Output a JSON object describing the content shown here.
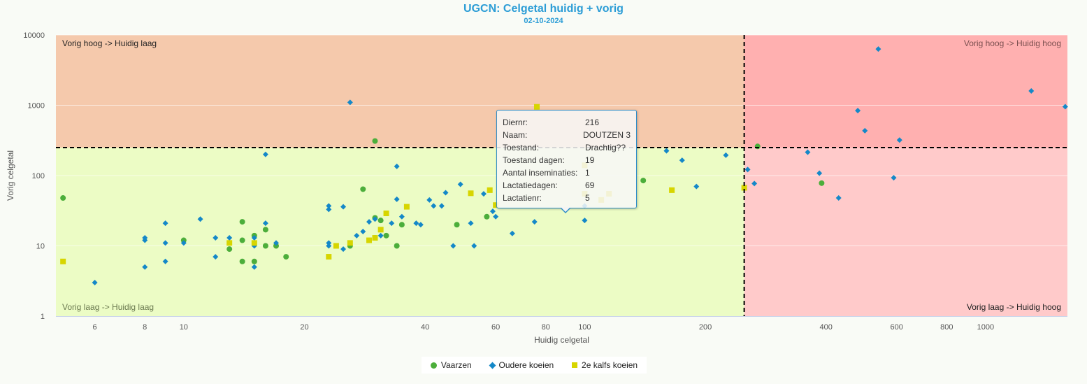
{
  "title": "UGCN: Celgetal huidig + vorig",
  "subtitle": "02-10-2024",
  "chart_data": {
    "type": "scatter",
    "xlabel": "Huidig celgetal",
    "ylabel": "Vorig celgetal",
    "x_scale": "log",
    "y_scale": "log",
    "xlim": [
      4.8,
      1600
    ],
    "ylim": [
      1,
      10000
    ],
    "x_ticks": [
      6,
      8,
      10,
      20,
      40,
      60,
      80,
      100,
      200,
      400,
      600,
      800,
      1000
    ],
    "y_ticks": [
      1,
      10,
      100,
      1000,
      10000
    ],
    "threshold": 250,
    "quadrants": {
      "top_left": "Vorig hoog -> Huidig laag",
      "top_right": "Vorig hoog -> Huidig hoog",
      "bottom_left": "Vorig laag -> Huidig laag",
      "bottom_right": "Vorig laag -> Huidig hoog"
    },
    "colors": {
      "q_top_left": "#f5c9ac",
      "q_top_right": "#ffb0b0",
      "q_bottom_left": "#ecfcc5",
      "q_bottom_right": "#ffcaca"
    },
    "legend_position": "bottom-center",
    "series": [
      {
        "name": "Vaarzen",
        "marker": "circle",
        "color": "#4cae3b",
        "points": [
          [
            5,
            48
          ],
          [
            10,
            12
          ],
          [
            13,
            9
          ],
          [
            14,
            22
          ],
          [
            14,
            12
          ],
          [
            14,
            6
          ],
          [
            15,
            14
          ],
          [
            15,
            6
          ],
          [
            16,
            17
          ],
          [
            16,
            10
          ],
          [
            17,
            10
          ],
          [
            18,
            7
          ],
          [
            26,
            10
          ],
          [
            28,
            64
          ],
          [
            30,
            25
          ],
          [
            30,
            13
          ],
          [
            30,
            310
          ],
          [
            31,
            23
          ],
          [
            32,
            14
          ],
          [
            34,
            10
          ],
          [
            35,
            20
          ],
          [
            48,
            20
          ],
          [
            57,
            26
          ],
          [
            140,
            85
          ],
          [
            270,
            260
          ],
          [
            390,
            78
          ]
        ]
      },
      {
        "name": "Oudere koeien",
        "marker": "diamond",
        "color": "#1488c8",
        "points": [
          [
            6,
            3
          ],
          [
            8,
            13
          ],
          [
            8,
            12
          ],
          [
            8,
            5
          ],
          [
            9,
            21
          ],
          [
            9,
            11
          ],
          [
            9,
            6
          ],
          [
            10,
            11
          ],
          [
            11,
            24
          ],
          [
            12,
            7
          ],
          [
            12,
            13
          ],
          [
            13,
            13
          ],
          [
            15,
            10
          ],
          [
            15,
            13
          ],
          [
            15,
            5
          ],
          [
            16,
            21
          ],
          [
            16,
            200
          ],
          [
            17,
            11
          ],
          [
            23,
            37
          ],
          [
            23,
            33
          ],
          [
            23,
            11
          ],
          [
            23,
            10
          ],
          [
            25,
            9
          ],
          [
            25,
            36
          ],
          [
            26,
            1100
          ],
          [
            27,
            14
          ],
          [
            28,
            16
          ],
          [
            29,
            22
          ],
          [
            30,
            24
          ],
          [
            31,
            14
          ],
          [
            33,
            21
          ],
          [
            34,
            46
          ],
          [
            34,
            135
          ],
          [
            35,
            26
          ],
          [
            38,
            21
          ],
          [
            39,
            20
          ],
          [
            41,
            45
          ],
          [
            42,
            37
          ],
          [
            44,
            37
          ],
          [
            45,
            57
          ],
          [
            47,
            10
          ],
          [
            49,
            75
          ],
          [
            52,
            21
          ],
          [
            53,
            10
          ],
          [
            56,
            55
          ],
          [
            59,
            31
          ],
          [
            60,
            26
          ],
          [
            66,
            15
          ],
          [
            75,
            22
          ],
          [
            100,
            37
          ],
          [
            100,
            23
          ],
          [
            160,
            225
          ],
          [
            175,
            165
          ],
          [
            190,
            70
          ],
          [
            225,
            195
          ],
          [
            255,
            122
          ],
          [
            265,
            77
          ],
          [
            360,
            215
          ],
          [
            385,
            108
          ],
          [
            430,
            48
          ],
          [
            480,
            840
          ],
          [
            500,
            435
          ],
          [
            540,
            6300
          ],
          [
            590,
            93
          ],
          [
            610,
            320
          ],
          [
            1300,
            1600
          ],
          [
            1580,
            955
          ]
        ]
      },
      {
        "name": "2e kalfs koeien",
        "marker": "square",
        "color": "#d7d500",
        "points": [
          [
            5,
            6
          ],
          [
            13,
            11
          ],
          [
            15,
            11
          ],
          [
            23,
            7
          ],
          [
            24,
            10
          ],
          [
            26,
            11
          ],
          [
            29,
            12
          ],
          [
            30,
            13
          ],
          [
            31,
            17
          ],
          [
            32,
            29
          ],
          [
            36,
            36
          ],
          [
            52,
            56
          ],
          [
            58,
            62
          ],
          [
            60,
            38
          ],
          [
            76,
            950
          ],
          [
            100,
            55
          ],
          [
            100,
            140
          ],
          [
            110,
            45
          ],
          [
            115,
            55
          ],
          [
            165,
            62
          ],
          [
            250,
            67
          ]
        ]
      }
    ]
  },
  "tooltip": {
    "rows": [
      {
        "key": "Diernr:",
        "value": "216"
      },
      {
        "key": "Naam:",
        "value": "DOUTZEN 3"
      },
      {
        "key": "Toestand:",
        "value": "Drachtig??"
      },
      {
        "key": "Toestand dagen:",
        "value": "19"
      },
      {
        "key": "Aantal inseminaties:",
        "value": "1"
      },
      {
        "key": "Lactatiedagen:",
        "value": "69"
      },
      {
        "key": "Lactatienr:",
        "value": "5"
      }
    ]
  }
}
